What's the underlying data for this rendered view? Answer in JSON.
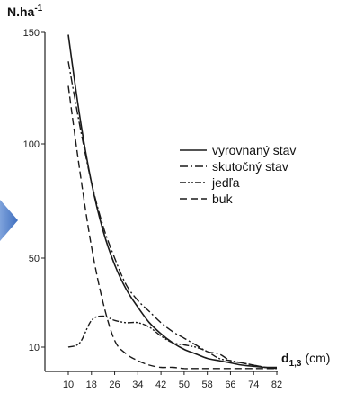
{
  "chart_data": {
    "type": "line",
    "ylabel": "N.ha",
    "ylabel_sup": "-1",
    "xlabel_main": "d",
    "xlabel_sub": "1,3",
    "xlabel_unit": "(cm)",
    "x_ticks": [
      10,
      18,
      26,
      34,
      42,
      50,
      58,
      66,
      74,
      82
    ],
    "y_ticks": [
      10,
      50,
      100,
      150
    ],
    "xlim": [
      10,
      82
    ],
    "ylim": [
      0,
      150
    ],
    "legend_position": "center-right",
    "series": [
      {
        "name": "vyrovnaný stav",
        "style": "solid",
        "x": [
          10,
          14,
          18,
          22,
          26,
          30,
          34,
          38,
          42,
          46,
          50,
          54,
          58,
          62,
          66,
          70,
          74,
          78,
          82
        ],
        "y": [
          149,
          112,
          83,
          62,
          47,
          36,
          28,
          21,
          16,
          12,
          9,
          7,
          5,
          4,
          3,
          2,
          1.5,
          1,
          1
        ]
      },
      {
        "name": "skutočný stav",
        "style": "dashdot",
        "x": [
          10,
          14,
          18,
          22,
          26,
          30,
          34,
          38,
          42,
          46,
          50,
          54,
          58,
          62,
          66,
          70,
          74,
          78,
          82
        ],
        "y": [
          137,
          108,
          83,
          64,
          50,
          38,
          31,
          26,
          21,
          17,
          14,
          11,
          8,
          7,
          4,
          3,
          2,
          1,
          0.5
        ]
      },
      {
        "name": "jedľa",
        "style": "dashdotdot",
        "x": [
          10,
          14,
          18,
          22,
          26,
          30,
          34,
          38,
          42,
          46,
          50,
          54,
          58,
          62,
          66,
          70,
          74,
          78,
          82
        ],
        "y": [
          10,
          12,
          22,
          24,
          22,
          21,
          21,
          19,
          15,
          12,
          11,
          10,
          8,
          5,
          4,
          3,
          2,
          1,
          0.5
        ]
      },
      {
        "name": "buk",
        "style": "dashed",
        "x": [
          10,
          14,
          18,
          22,
          26,
          30,
          34,
          38,
          42,
          46,
          50,
          54,
          58,
          62,
          66,
          70,
          74,
          78,
          82
        ],
        "y": [
          126,
          88,
          55,
          30,
          13,
          7,
          4,
          2,
          1,
          1,
          0.5,
          0.5,
          0.5,
          0.5,
          0.5,
          0.5,
          0.5,
          0.5,
          0.5
        ]
      }
    ],
    "colors": {
      "lines": "#1a1a1a",
      "axis": "#222222",
      "arrow": "#4a78c2"
    }
  }
}
